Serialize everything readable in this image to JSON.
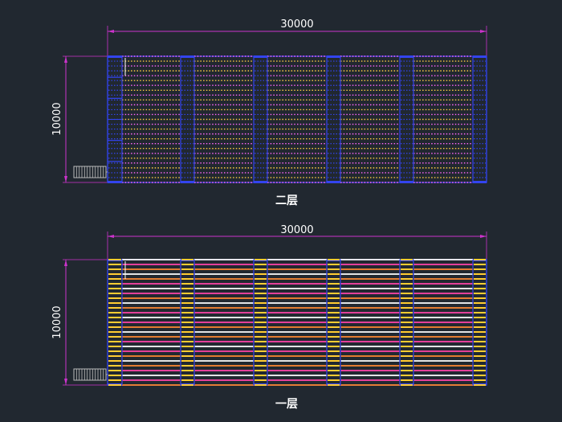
{
  "drawing": {
    "background": "#212830",
    "colors": {
      "dimension": "#cc33cc",
      "extension": "#d0d0d0",
      "frame": "#3344ee",
      "upper_rack_a": "#ff66ff",
      "upper_rack_b": "#ffcc44",
      "upper_bay": "#3344ee",
      "lower_rack_a": "#ff8833",
      "lower_rack_b": "#ff44aa",
      "lower_bay": "#ffcc33",
      "walkway": "#ffffff",
      "stair": "#bbbbbb"
    },
    "plans": [
      {
        "id": "upper",
        "label": "二层",
        "width_dimension": "30000",
        "depth_dimension": "10000",
        "style": "dotted"
      },
      {
        "id": "lower",
        "label": "一层",
        "width_dimension": "30000",
        "depth_dimension": "10000",
        "style": "solid"
      }
    ]
  }
}
